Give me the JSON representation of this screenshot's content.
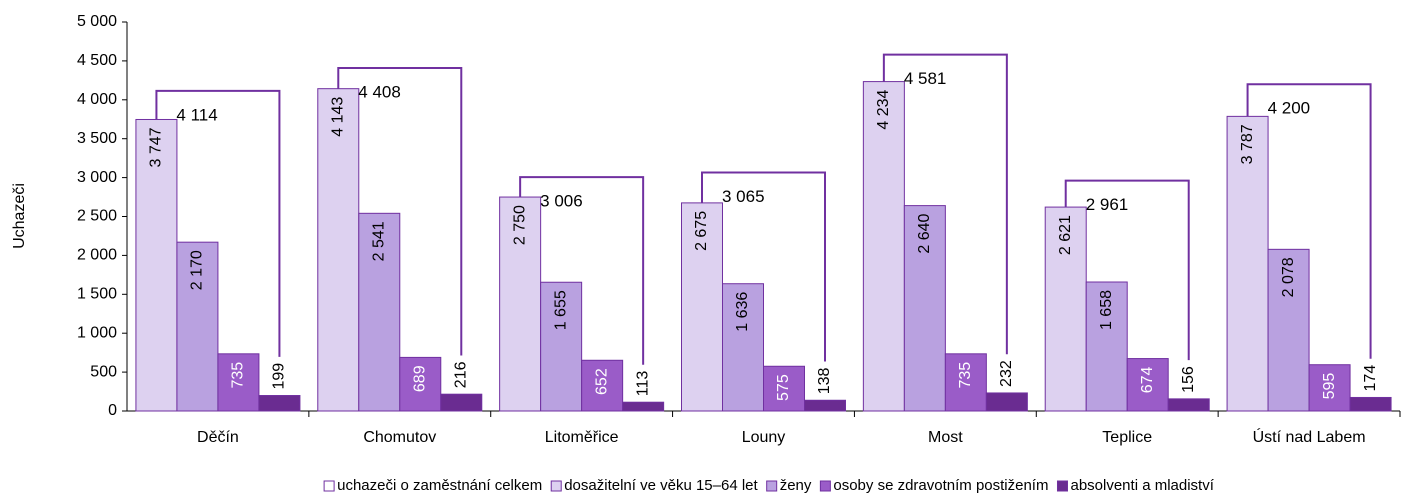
{
  "chart_data": {
    "type": "bar",
    "y_label": "Uchazeči",
    "categories": [
      "Děčín",
      "Chomutov",
      "Litoměřice",
      "Louny",
      "Most",
      "Teplice",
      "Ústí nad Labem"
    ],
    "series": [
      {
        "name": "uchazeči o zaměstnání celkem",
        "color": "#7030a0",
        "values": [
          4114,
          4408,
          3006,
          3065,
          4581,
          2961,
          4200
        ],
        "value_labels": [
          "4 114",
          "4 408",
          "3 006",
          "3 065",
          "4 581",
          "2 961",
          "4 200"
        ]
      },
      {
        "name": "dosažitelní ve věku 15–64 let",
        "color": "#ddd1f0",
        "values": [
          3747,
          4143,
          2750,
          2675,
          4234,
          2621,
          3787
        ],
        "value_labels": [
          "3 747",
          "4 143",
          "2 750",
          "2 675",
          "4 234",
          "2 621",
          "3 787"
        ]
      },
      {
        "name": "ženy",
        "color": "#b9a1e0",
        "values": [
          2170,
          2541,
          1655,
          1636,
          2640,
          1658,
          2078
        ],
        "value_labels": [
          "2 170",
          "2 541",
          "1 655",
          "1 636",
          "2 640",
          "1 658",
          "2 078"
        ]
      },
      {
        "name": "osoby se zdravotním postižením",
        "color": "#9a5cc8",
        "values": [
          735,
          689,
          652,
          575,
          735,
          674,
          595
        ],
        "value_labels": [
          "735",
          "689",
          "652",
          "575",
          "735",
          "674",
          "595"
        ]
      },
      {
        "name": "absolventi a mladiství",
        "color": "#6a2c91",
        "values": [
          199,
          216,
          113,
          138,
          232,
          156,
          174
        ],
        "value_labels": [
          "199",
          "216",
          "113",
          "138",
          "232",
          "156",
          "174"
        ]
      }
    ],
    "ylim": [
      0,
      5000
    ],
    "yticks": [
      0,
      500,
      {
        "value": 1000,
        "label": "1 000"
      },
      {
        "value": 1500,
        "label": "1 500"
      },
      {
        "value": 2000,
        "label": "2 000"
      },
      {
        "value": 2500,
        "label": "2 500"
      },
      {
        "value": 3000,
        "label": "3 000"
      },
      {
        "value": 3500,
        "label": "3 500"
      },
      {
        "value": 4000,
        "label": "4 000"
      },
      {
        "value": 4500,
        "label": "4 500"
      },
      {
        "value": 5000,
        "label": "5 000"
      }
    ]
  }
}
